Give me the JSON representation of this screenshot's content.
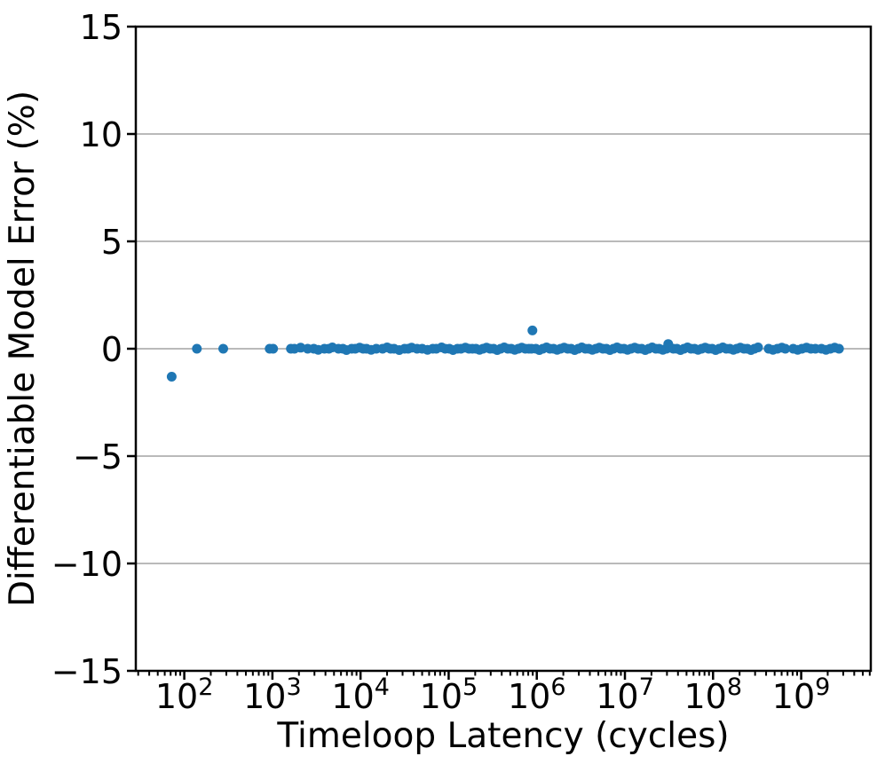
{
  "figure": {
    "background": "#ffffff",
    "spine_color": "#000000",
    "grid_color": "#b0b0b0",
    "marker_color": "#1f77b4"
  },
  "chart_data": {
    "type": "scatter",
    "title": "",
    "xlabel": "Timeloop Latency (cycles)",
    "ylabel": "Differentiable Model Error (%)",
    "x_scale": "log",
    "xlim_log10": [
      1.45,
      9.79
    ],
    "ylim": [
      -15,
      15
    ],
    "yticks": [
      15,
      10,
      5,
      0,
      -5,
      -10,
      -15
    ],
    "xtick_exponents": [
      2,
      3,
      4,
      5,
      6,
      7,
      8,
      9
    ],
    "grid": {
      "axis": "y",
      "color": "#b0b0b0",
      "on": true
    },
    "legend": "none",
    "marker": {
      "color": "#1f77b4",
      "radius_px": 5.5
    },
    "points": [
      [
        72,
        -1.3
      ],
      [
        139,
        0
      ],
      [
        277,
        0
      ],
      [
        930,
        0
      ],
      [
        1020,
        0
      ],
      [
        1620,
        0
      ],
      [
        1780,
        0
      ],
      [
        2090,
        0.05
      ],
      [
        2510,
        0
      ],
      [
        2950,
        0
      ],
      [
        3310,
        -0.05
      ],
      [
        3890,
        0
      ],
      [
        4370,
        0
      ],
      [
        4790,
        0.06
      ],
      [
        5620,
        0
      ],
      [
        6310,
        0
      ],
      [
        6920,
        -0.06
      ],
      [
        7940,
        0
      ],
      [
        8710,
        0
      ],
      [
        9770,
        0.05
      ],
      [
        10700,
        0
      ],
      [
        11700,
        0
      ],
      [
        13200,
        -0.05
      ],
      [
        15100,
        0
      ],
      [
        17800,
        0
      ],
      [
        20000,
        0.06
      ],
      [
        21900,
        0
      ],
      [
        24000,
        0
      ],
      [
        27500,
        -0.06
      ],
      [
        31600,
        0
      ],
      [
        34700,
        0
      ],
      [
        38000,
        0.05
      ],
      [
        43700,
        0
      ],
      [
        50100,
        0
      ],
      [
        57500,
        -0.05
      ],
      [
        66100,
        0
      ],
      [
        72400,
        0
      ],
      [
        83200,
        0.06
      ],
      [
        91200,
        0
      ],
      [
        102000,
        0
      ],
      [
        112000,
        -0.06
      ],
      [
        126000,
        0
      ],
      [
        138000,
        0
      ],
      [
        155000,
        0.05
      ],
      [
        170000,
        0
      ],
      [
        186000,
        0
      ],
      [
        204000,
        0
      ],
      [
        224000,
        -0.05
      ],
      [
        245000,
        0
      ],
      [
        269000,
        0.05
      ],
      [
        295000,
        0
      ],
      [
        324000,
        0
      ],
      [
        355000,
        -0.06
      ],
      [
        389000,
        0
      ],
      [
        427000,
        0.06
      ],
      [
        468000,
        0
      ],
      [
        513000,
        0
      ],
      [
        562000,
        -0.05
      ],
      [
        617000,
        0
      ],
      [
        676000,
        0.05
      ],
      [
        741000,
        0
      ],
      [
        813000,
        0
      ],
      [
        871000,
        0
      ],
      [
        891000,
        0.85
      ],
      [
        977000,
        0
      ],
      [
        1070000,
        -0.06
      ],
      [
        1170000,
        0
      ],
      [
        1290000,
        0.06
      ],
      [
        1410000,
        0
      ],
      [
        1550000,
        0
      ],
      [
        1700000,
        -0.05
      ],
      [
        1860000,
        0
      ],
      [
        2040000,
        0.05
      ],
      [
        2240000,
        0
      ],
      [
        2450000,
        0
      ],
      [
        2690000,
        -0.06
      ],
      [
        2950000,
        0
      ],
      [
        3240000,
        0.06
      ],
      [
        3550000,
        0
      ],
      [
        3890000,
        0
      ],
      [
        4270000,
        -0.05
      ],
      [
        4680000,
        0
      ],
      [
        5130000,
        0.05
      ],
      [
        5620000,
        0
      ],
      [
        6170000,
        0
      ],
      [
        6760000,
        -0.06
      ],
      [
        7410000,
        0
      ],
      [
        8130000,
        0.06
      ],
      [
        8910000,
        0
      ],
      [
        9770000,
        0
      ],
      [
        10700000,
        -0.05
      ],
      [
        11700000,
        0
      ],
      [
        12900000,
        0.05
      ],
      [
        14100000,
        0
      ],
      [
        15500000,
        0
      ],
      [
        17000000,
        -0.06
      ],
      [
        18600000,
        0
      ],
      [
        20400000,
        0.06
      ],
      [
        22400000,
        0
      ],
      [
        24500000,
        0
      ],
      [
        26900000,
        -0.05
      ],
      [
        29500000,
        0
      ],
      [
        31000000,
        0.22
      ],
      [
        32400000,
        0.05
      ],
      [
        35500000,
        0
      ],
      [
        38900000,
        0
      ],
      [
        42700000,
        -0.06
      ],
      [
        46800000,
        0
      ],
      [
        51300000,
        0.06
      ],
      [
        56200000,
        0
      ],
      [
        61700000,
        0
      ],
      [
        67600000,
        -0.05
      ],
      [
        74100000,
        0
      ],
      [
        81300000,
        0.05
      ],
      [
        89100000,
        0
      ],
      [
        97700000,
        0
      ],
      [
        107000000,
        -0.06
      ],
      [
        117000000,
        0
      ],
      [
        129000000,
        0.06
      ],
      [
        141000000,
        0
      ],
      [
        155000000,
        0
      ],
      [
        170000000,
        -0.05
      ],
      [
        186000000,
        0
      ],
      [
        204000000,
        0.05
      ],
      [
        224000000,
        0
      ],
      [
        245000000,
        0
      ],
      [
        269000000,
        -0.06
      ],
      [
        295000000,
        0
      ],
      [
        324000000,
        0.06
      ],
      [
        427000000,
        0
      ],
      [
        479000000,
        -0.05
      ],
      [
        537000000,
        0
      ],
      [
        603000000,
        0.05
      ],
      [
        661000000,
        0
      ],
      [
        813000000,
        0
      ],
      [
        912000000,
        -0.05
      ],
      [
        1020000000,
        0
      ],
      [
        1150000000,
        0.05
      ],
      [
        1290000000,
        0
      ],
      [
        1450000000,
        0
      ],
      [
        1700000000,
        0
      ],
      [
        1910000000,
        -0.05
      ],
      [
        2140000000,
        0
      ],
      [
        2400000000,
        0.05
      ],
      [
        2690000000,
        0
      ]
    ]
  }
}
